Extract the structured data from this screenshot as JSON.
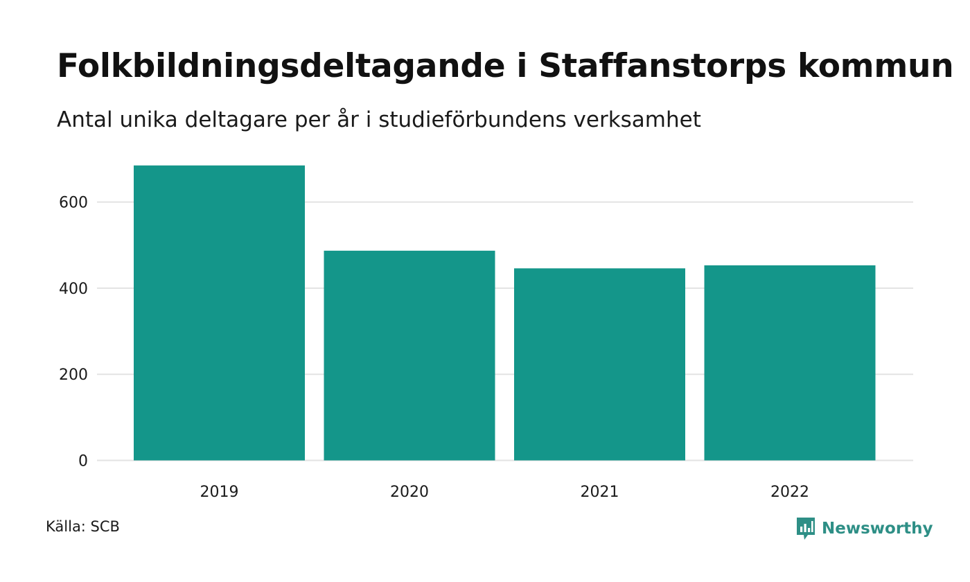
{
  "chart_data": {
    "type": "bar",
    "title": "Folkbildningsdeltagande i Staffanstorps kommun",
    "subtitle": "Antal unika deltagare per år i studieförbundens verksamhet",
    "categories": [
      "2019",
      "2020",
      "2021",
      "2022"
    ],
    "values": [
      685,
      487,
      446,
      453
    ],
    "xlabel": "",
    "ylabel": "",
    "ylim": [
      0,
      690
    ],
    "yticks": [
      "0",
      "200",
      "400",
      "600"
    ],
    "grid": true,
    "legend": "none",
    "bar_color": "#14968a",
    "grid_color": "#e3e3e3"
  },
  "footer": {
    "source": "Källa: SCB",
    "brand_name": "Newsworthy",
    "brand_icon": "bar-chart-bubble-icon",
    "brand_color": "#2e8f86"
  }
}
